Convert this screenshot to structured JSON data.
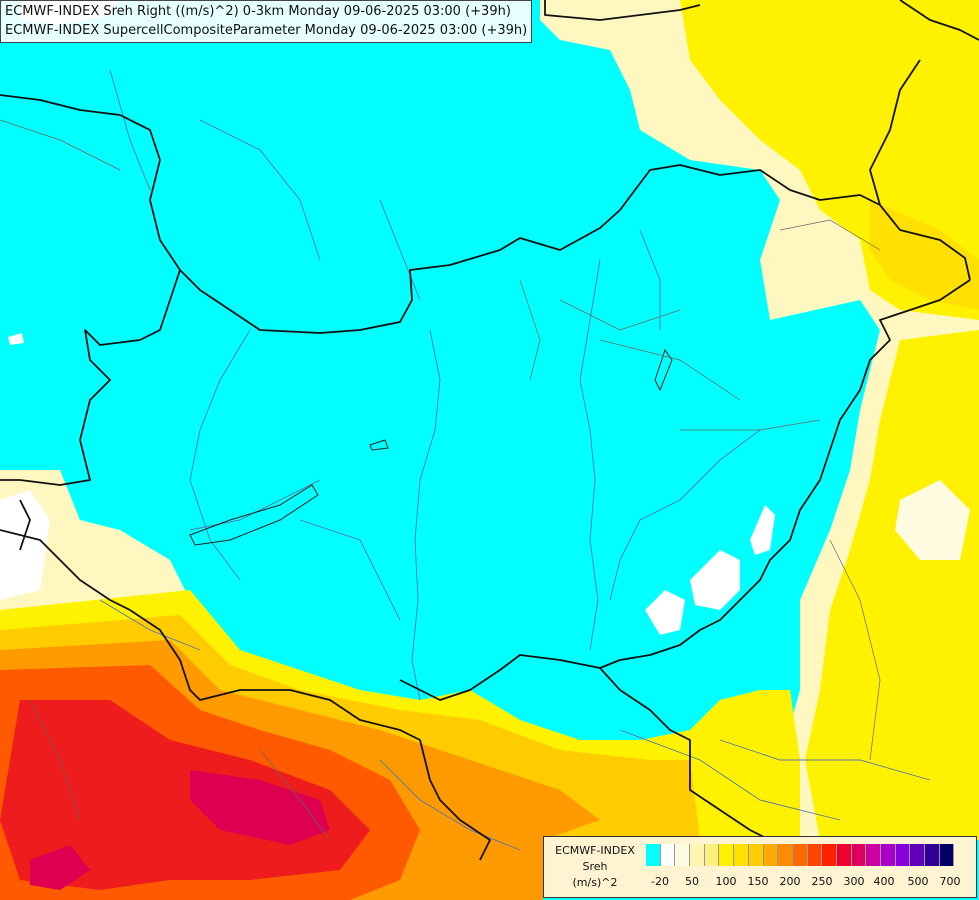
{
  "title": {
    "line1": "ECMWF-INDEX Sreh Right ((m/s)^2) 0-3km Monday 09-06-2025 03:00 (+39h)",
    "line2": "ECMWF-INDEX SupercellCompositeParameter Monday 09-06-2025 03:00 (+39h)"
  },
  "legend": {
    "line1": "ECMWF-INDEX",
    "line2": "Sreh",
    "line3": "(m/s)^2",
    "colors": [
      "#00ffff",
      "#ffffff",
      "#fffbe0",
      "#fff4b0",
      "#ffee80",
      "#fff000",
      "#ffe000",
      "#ffcc00",
      "#ffaa00",
      "#ff8c00",
      "#ff6a00",
      "#ff4400",
      "#ff2000",
      "#ee0030",
      "#dd0060",
      "#cc00a0",
      "#aa00cc",
      "#8800dd",
      "#6000bb",
      "#300099",
      "#000066"
    ],
    "ticks": [
      "-20",
      "50",
      "100",
      "150",
      "200",
      "250",
      "300",
      "400",
      "500",
      "700"
    ]
  },
  "colors": {
    "cyan": "#00ffff",
    "pale_yellow": "#fff7c0",
    "yellow": "#fff200",
    "gold": "#ffd000",
    "orange": "#ff9a00",
    "red_orange": "#ff5a00",
    "red": "#ee1c1c",
    "crimson": "#dd0050"
  }
}
